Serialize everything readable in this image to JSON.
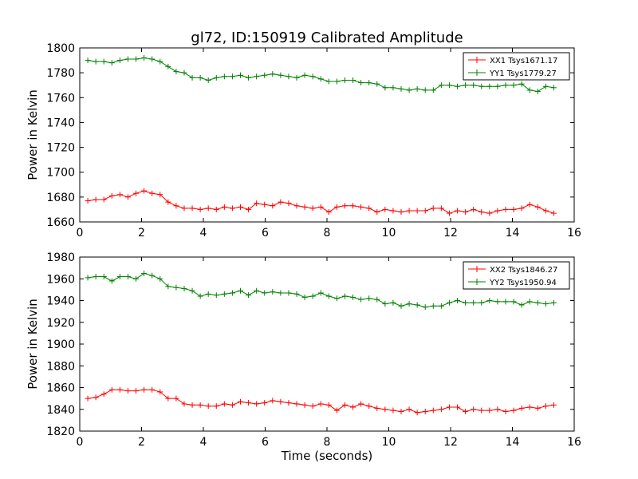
{
  "figure": {
    "title": "gl72, ID:150919 Calibrated Amplitude"
  },
  "chart_data": [
    {
      "type": "line",
      "title": "gl72, ID:150919 Calibrated Amplitude",
      "xlabel": "",
      "ylabel": "Power in Kelvin",
      "xlim": [
        0,
        16
      ],
      "ylim": [
        1660,
        1800
      ],
      "xticks": [
        0,
        2,
        4,
        6,
        8,
        10,
        12,
        14,
        16
      ],
      "yticks": [
        1660,
        1680,
        1700,
        1720,
        1740,
        1760,
        1780,
        1800
      ],
      "grid": false,
      "legend_position": "top-right",
      "x": [
        0.26,
        0.52,
        0.78,
        1.04,
        1.3,
        1.56,
        1.82,
        2.08,
        2.34,
        2.6,
        2.86,
        3.12,
        3.38,
        3.64,
        3.9,
        4.16,
        4.42,
        4.68,
        4.94,
        5.2,
        5.46,
        5.72,
        5.98,
        6.24,
        6.5,
        6.76,
        7.02,
        7.28,
        7.54,
        7.8,
        8.06,
        8.32,
        8.58,
        8.84,
        9.1,
        9.36,
        9.62,
        9.88,
        10.14,
        10.4,
        10.66,
        10.92,
        11.18,
        11.44,
        11.7,
        11.96,
        12.22,
        12.48,
        12.74,
        13.0,
        13.26,
        13.52,
        13.78,
        14.04,
        14.3,
        14.56,
        14.82,
        15.08,
        15.34
      ],
      "series": [
        {
          "name": "XX1 Tsys1671.17",
          "color": "#ff0000",
          "values": [
            1677,
            1678,
            1678,
            1681,
            1682,
            1680,
            1683,
            1685,
            1683,
            1682,
            1676,
            1673,
            1671,
            1671,
            1670,
            1671,
            1670,
            1672,
            1671,
            1672,
            1670,
            1675,
            1674,
            1673,
            1676,
            1675,
            1673,
            1672,
            1671,
            1672,
            1668,
            1672,
            1673,
            1673,
            1672,
            1671,
            1668,
            1670,
            1669,
            1668,
            1669,
            1669,
            1669,
            1671,
            1671,
            1667,
            1669,
            1668,
            1670,
            1668,
            1667,
            1669,
            1670,
            1670,
            1671,
            1674,
            1672,
            1669,
            1667
          ]
        },
        {
          "name": "YY1 Tsys1779.27",
          "color": "#008000",
          "values": [
            1790,
            1789,
            1789,
            1788,
            1790,
            1791,
            1791,
            1792,
            1791,
            1789,
            1785,
            1781,
            1780,
            1776,
            1776,
            1774,
            1776,
            1777,
            1777,
            1778,
            1776,
            1777,
            1778,
            1779,
            1778,
            1777,
            1776,
            1778,
            1777,
            1775,
            1773,
            1773,
            1774,
            1774,
            1772,
            1772,
            1771,
            1768,
            1768,
            1767,
            1766,
            1767,
            1766,
            1766,
            1770,
            1770,
            1769,
            1770,
            1770,
            1769,
            1769,
            1769,
            1770,
            1770,
            1771,
            1766,
            1765,
            1769,
            1768
          ]
        }
      ]
    },
    {
      "type": "line",
      "title": "",
      "xlabel": "Time (seconds)",
      "ylabel": "Power in Kelvin",
      "xlim": [
        0,
        16
      ],
      "ylim": [
        1820,
        1980
      ],
      "xticks": [
        0,
        2,
        4,
        6,
        8,
        10,
        12,
        14,
        16
      ],
      "yticks": [
        1820,
        1840,
        1860,
        1880,
        1900,
        1920,
        1940,
        1960,
        1980
      ],
      "grid": false,
      "legend_position": "top-right",
      "x": [
        0.26,
        0.52,
        0.78,
        1.04,
        1.3,
        1.56,
        1.82,
        2.08,
        2.34,
        2.6,
        2.86,
        3.12,
        3.38,
        3.64,
        3.9,
        4.16,
        4.42,
        4.68,
        4.94,
        5.2,
        5.46,
        5.72,
        5.98,
        6.24,
        6.5,
        6.76,
        7.02,
        7.28,
        7.54,
        7.8,
        8.06,
        8.32,
        8.58,
        8.84,
        9.1,
        9.36,
        9.62,
        9.88,
        10.14,
        10.4,
        10.66,
        10.92,
        11.18,
        11.44,
        11.7,
        11.96,
        12.22,
        12.48,
        12.74,
        13.0,
        13.26,
        13.52,
        13.78,
        14.04,
        14.3,
        14.56,
        14.82,
        15.08,
        15.34
      ],
      "series": [
        {
          "name": "XX2 Tsys1846.27",
          "color": "#ff0000",
          "values": [
            1850,
            1851,
            1854,
            1858,
            1858,
            1857,
            1857,
            1858,
            1858,
            1856,
            1850,
            1850,
            1845,
            1844,
            1844,
            1843,
            1843,
            1845,
            1844,
            1847,
            1846,
            1845,
            1846,
            1848,
            1847,
            1846,
            1845,
            1844,
            1843,
            1845,
            1844,
            1839,
            1844,
            1842,
            1845,
            1843,
            1841,
            1840,
            1839,
            1838,
            1840,
            1837,
            1838,
            1839,
            1840,
            1842,
            1842,
            1838,
            1840,
            1839,
            1839,
            1840,
            1838,
            1839,
            1841,
            1842,
            1841,
            1843,
            1844
          ]
        },
        {
          "name": "YY2 Tsys1950.94",
          "color": "#008000",
          "values": [
            1961,
            1962,
            1962,
            1958,
            1962,
            1962,
            1960,
            1965,
            1963,
            1960,
            1953,
            1952,
            1951,
            1949,
            1944,
            1946,
            1945,
            1946,
            1947,
            1949,
            1945,
            1949,
            1947,
            1948,
            1947,
            1947,
            1946,
            1943,
            1944,
            1947,
            1944,
            1942,
            1944,
            1943,
            1941,
            1942,
            1941,
            1937,
            1938,
            1935,
            1937,
            1936,
            1934,
            1935,
            1935,
            1938,
            1940,
            1938,
            1938,
            1938,
            1940,
            1939,
            1939,
            1939,
            1936,
            1939,
            1938,
            1937,
            1938
          ]
        }
      ]
    }
  ]
}
